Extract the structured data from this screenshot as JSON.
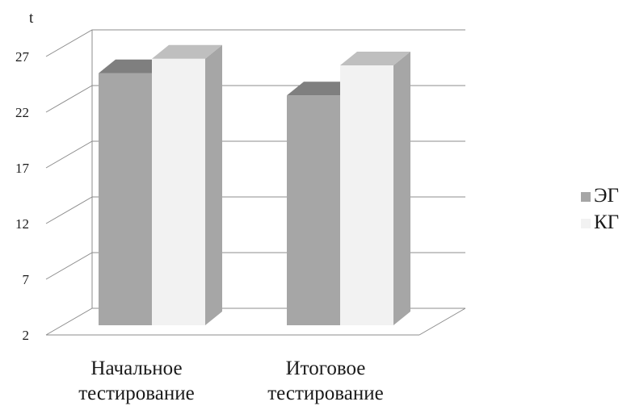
{
  "chart_data": {
    "type": "bar",
    "ylabel": "t",
    "ylim": [
      2,
      27
    ],
    "yticks": [
      "2",
      "7",
      "12",
      "17",
      "22",
      "27"
    ],
    "categories": [
      [
        "Начальное",
        "тестирование"
      ],
      [
        "Итоговое",
        "тестирование"
      ]
    ],
    "series": [
      {
        "name": "ЭГ",
        "values": [
          25.5,
          23.5
        ],
        "color": "#a6a6a6",
        "top_color": "#7f7f7f",
        "side_color": "#8f8f8f"
      },
      {
        "name": "КГ",
        "values": [
          26.8,
          26.2
        ],
        "color": "#f2f2f2",
        "top_color": "#bfbfbf",
        "side_color": "#a6a6a6"
      }
    ],
    "grid": true,
    "legend": "right",
    "style": "3d"
  }
}
